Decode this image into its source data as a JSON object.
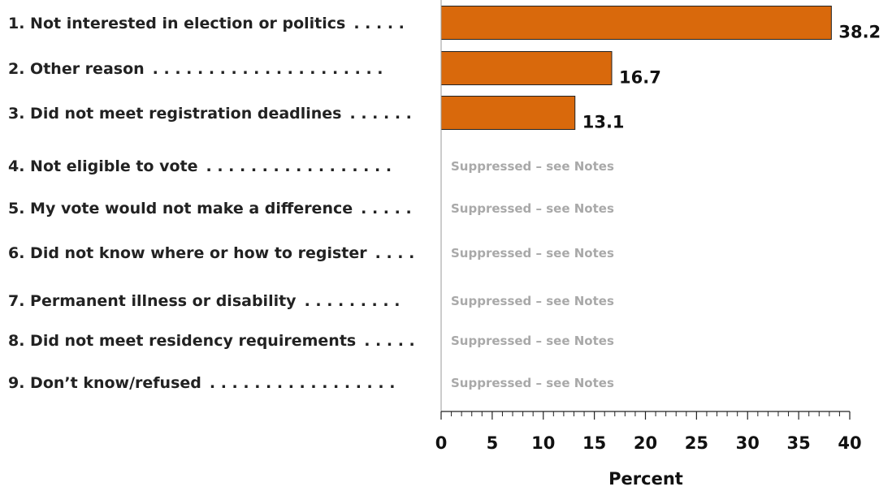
{
  "chart_data": {
    "type": "bar",
    "orientation": "horizontal",
    "categories": [
      "1.  Not interested in election or politics",
      "2.  Other reason",
      "3.  Did not meet registration deadlines",
      "4.  Not eligible to vote",
      "5.  My vote would not make a difference",
      "6.  Did not know where or how to register",
      "7.  Permanent illness or disability",
      "8.  Did not meet residency requirements",
      "9.  Don’t know/refused"
    ],
    "values": [
      38.2,
      16.7,
      13.1,
      null,
      null,
      null,
      null,
      null,
      null
    ],
    "value_labels": [
      "38.2",
      "16.7",
      "13.1",
      "",
      "",
      "",
      "",
      "",
      ""
    ],
    "suppressed_text": "Suppressed – see Notes",
    "xlabel": "Percent",
    "xlim": [
      0,
      40
    ],
    "xticks": [
      0,
      5,
      10,
      15,
      20,
      25,
      30,
      35,
      40
    ],
    "xtick_labels": [
      "0",
      "5",
      "10",
      "15",
      "20",
      "25",
      "30",
      "35",
      "40"
    ],
    "minor_tick_step": 1,
    "grid": false,
    "colors": {
      "bar": "#d9690c",
      "bar_edge": "#222222",
      "suppressed": "#a9a9a9"
    }
  }
}
